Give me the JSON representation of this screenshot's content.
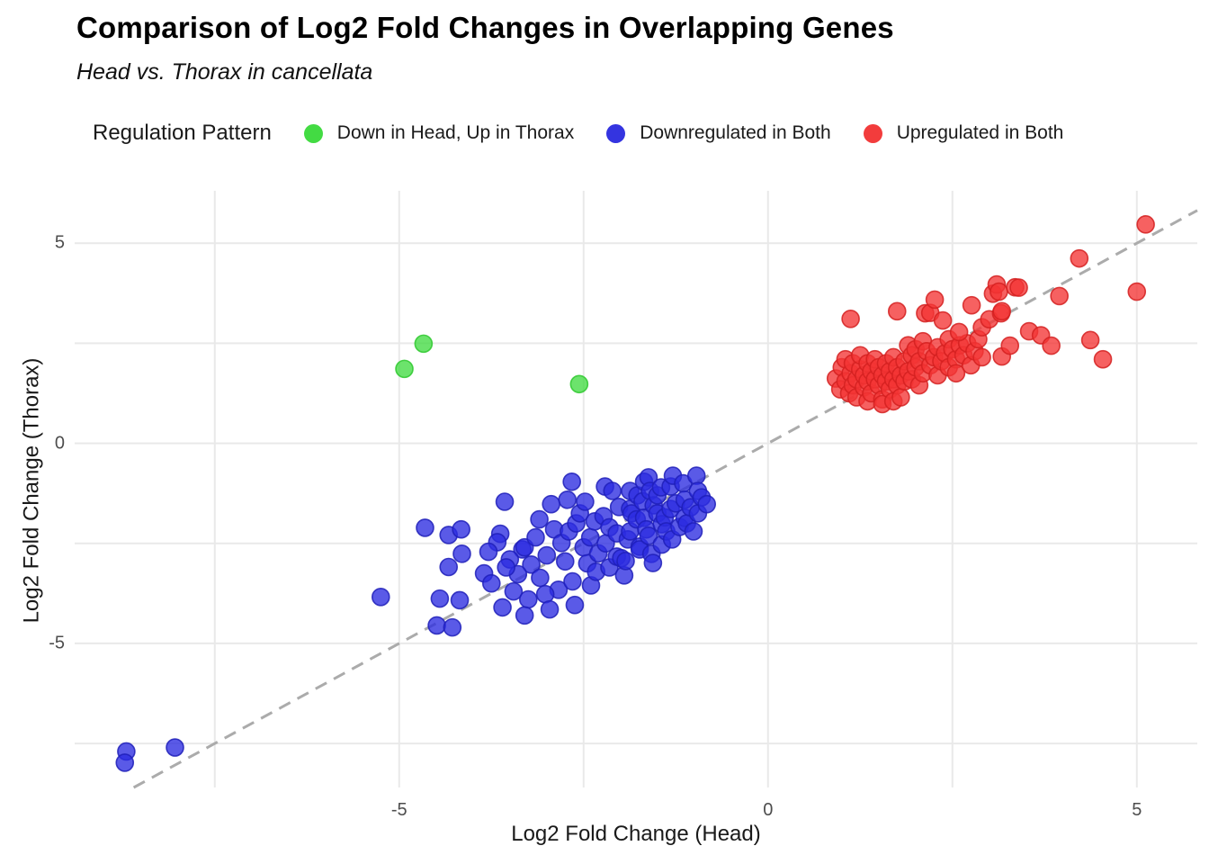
{
  "title": "Comparison of Log2 Fold Changes in Overlapping Genes",
  "subtitle": "Head vs. Thorax in cancellata",
  "legend": {
    "title": "Regulation Pattern",
    "position": "top",
    "items": [
      {
        "label": "Down in Head, Up in Thorax",
        "color": "#43DB43"
      },
      {
        "label": "Downregulated in Both",
        "color": "#3434E0"
      },
      {
        "label": "Upregulated in Both",
        "color": "#F23C3C"
      }
    ]
  },
  "axes": {
    "x": {
      "label": "Log2 Fold Change (Head)",
      "tick_labels": [
        "-5",
        "0",
        "5"
      ],
      "tick_values": [
        -5,
        0,
        5
      ]
    },
    "y": {
      "label": "Log2 Fold Change (Thorax)",
      "tick_labels": [
        "5",
        "0",
        "-5"
      ],
      "tick_values": [
        5,
        0,
        -5
      ]
    }
  },
  "chart_data": {
    "type": "scatter",
    "title": "Comparison of Log2 Fold Changes in Overlapping Genes",
    "subtitle": "Head vs. Thorax in cancellata",
    "xlabel": "Log2 Fold Change (Head)",
    "ylabel": "Log2 Fold Change (Thorax)",
    "xlim": [
      -9.4,
      5.82
    ],
    "ylim": [
      -8.6,
      6.31
    ],
    "grid": true,
    "grid_color": "#E9E9E9",
    "gridlines_x": [
      -7.5,
      -5,
      -2.5,
      0,
      2.5,
      5
    ],
    "gridlines_y": [
      5,
      2.5,
      0,
      -2.5,
      -5,
      -7.5
    ],
    "legend_position": "top",
    "point_radius_px": 9.5,
    "point_fill_opacity": 0.78,
    "identity_line": {
      "equation": "y = x",
      "style": "dashed",
      "color": "#ABABAB",
      "width": 3,
      "dash": "14 9"
    },
    "series": [
      {
        "name": "Down in Head, Up in Thorax",
        "color": "#43DB43",
        "stroke": "#2EC82E",
        "points": [
          [
            -4.93,
            1.86
          ],
          [
            -4.67,
            2.49
          ],
          [
            -2.56,
            1.48
          ]
        ]
      },
      {
        "name": "Downregulated in Both",
        "color": "#2B2BE0",
        "stroke": "#1F1FB8",
        "points": [
          [
            -8.7,
            -7.7
          ],
          [
            -8.72,
            -7.98
          ],
          [
            -8.04,
            -7.6
          ],
          [
            -5.25,
            -3.84
          ],
          [
            -4.65,
            -2.11
          ],
          [
            -4.33,
            -2.29
          ],
          [
            -4.16,
            -2.15
          ],
          [
            -4.15,
            -2.76
          ],
          [
            -4.33,
            -3.09
          ],
          [
            -4.45,
            -3.88
          ],
          [
            -4.18,
            -3.92
          ],
          [
            -4.49,
            -4.55
          ],
          [
            -4.28,
            -4.6
          ],
          [
            -3.57,
            -1.46
          ],
          [
            -3.63,
            -2.26
          ],
          [
            -3.67,
            -2.47
          ],
          [
            -3.79,
            -2.71
          ],
          [
            -3.85,
            -3.25
          ],
          [
            -3.33,
            -2.65
          ],
          [
            -3.21,
            -3.03
          ],
          [
            -3.39,
            -3.27
          ],
          [
            -3.3,
            -2.6
          ],
          [
            -3.0,
            -2.8
          ],
          [
            -3.09,
            -3.36
          ],
          [
            -2.84,
            -3.66
          ],
          [
            -3.02,
            -3.77
          ],
          [
            -2.96,
            -4.15
          ],
          [
            -2.62,
            -4.04
          ],
          [
            -3.5,
            -2.9
          ],
          [
            -3.55,
            -3.1
          ],
          [
            -3.75,
            -3.5
          ],
          [
            -3.45,
            -3.7
          ],
          [
            -3.25,
            -3.9
          ],
          [
            -3.6,
            -4.1
          ],
          [
            -3.3,
            -4.3
          ],
          [
            -3.1,
            -1.9
          ],
          [
            -3.15,
            -2.35
          ],
          [
            -2.9,
            -2.15
          ],
          [
            -2.8,
            -2.49
          ],
          [
            -2.75,
            -2.95
          ],
          [
            -2.7,
            -2.2
          ],
          [
            -2.66,
            -0.96
          ],
          [
            -2.72,
            -1.41
          ],
          [
            -2.94,
            -1.52
          ],
          [
            -2.6,
            -2.0
          ],
          [
            -2.55,
            -1.75
          ],
          [
            -2.5,
            -2.6
          ],
          [
            -2.48,
            -1.46
          ],
          [
            -2.45,
            -3.0
          ],
          [
            -2.41,
            -2.35
          ],
          [
            -2.4,
            -3.55
          ],
          [
            -2.35,
            -1.95
          ],
          [
            -2.33,
            -3.21
          ],
          [
            -2.3,
            -2.75
          ],
          [
            -2.23,
            -1.82
          ],
          [
            -2.21,
            -1.08
          ],
          [
            -2.2,
            -2.5
          ],
          [
            -2.15,
            -2.1
          ],
          [
            -2.15,
            -3.1
          ],
          [
            -2.11,
            -1.19
          ],
          [
            -2.05,
            -2.83
          ],
          [
            -2.05,
            -2.25
          ],
          [
            -2.02,
            -1.59
          ],
          [
            -1.95,
            -3.3
          ],
          [
            -1.9,
            -2.4
          ],
          [
            -2.65,
            -3.45
          ],
          [
            -1.99,
            -2.87
          ],
          [
            -1.93,
            -2.94
          ],
          [
            -1.87,
            -1.19
          ],
          [
            -1.87,
            -1.64
          ],
          [
            -1.87,
            -2.2
          ],
          [
            -1.85,
            -1.75
          ],
          [
            -1.78,
            -1.9
          ],
          [
            -1.77,
            -1.3
          ],
          [
            -1.74,
            -2.58
          ],
          [
            -1.74,
            -2.65
          ],
          [
            -1.7,
            -1.45
          ],
          [
            -1.68,
            -0.96
          ],
          [
            -1.68,
            -1.86
          ],
          [
            -1.65,
            -2.15
          ],
          [
            -1.62,
            -0.85
          ],
          [
            -1.62,
            -2.31
          ],
          [
            -1.6,
            -1.19
          ],
          [
            -1.58,
            -2.76
          ],
          [
            -1.56,
            -2.99
          ],
          [
            -1.55,
            -1.55
          ],
          [
            -1.5,
            -1.3
          ],
          [
            -1.5,
            -1.75
          ],
          [
            -1.45,
            -1.1
          ],
          [
            -1.44,
            -2.02
          ],
          [
            -1.44,
            -2.53
          ],
          [
            -1.4,
            -1.85
          ],
          [
            -1.38,
            -2.2
          ],
          [
            -1.32,
            -1.08
          ],
          [
            -1.32,
            -1.64
          ],
          [
            -1.3,
            -2.4
          ],
          [
            -1.29,
            -0.81
          ],
          [
            -1.25,
            -1.5
          ],
          [
            -1.2,
            -2.09
          ],
          [
            -1.15,
            -1.0
          ],
          [
            -1.13,
            -1.41
          ],
          [
            -1.13,
            -1.86
          ],
          [
            -1.1,
            -2.0
          ],
          [
            -1.05,
            -1.6
          ],
          [
            -1.01,
            -2.2
          ],
          [
            -0.97,
            -0.81
          ],
          [
            -0.95,
            -1.19
          ],
          [
            -0.95,
            -1.75
          ],
          [
            -0.9,
            -1.35
          ],
          [
            -0.83,
            -1.52
          ]
        ]
      },
      {
        "name": "Upregulated in Both",
        "color": "#F43434",
        "stroke": "#D42020",
        "points": [
          [
            0.92,
            1.62
          ],
          [
            0.98,
            1.35
          ],
          [
            1.0,
            1.9
          ],
          [
            1.05,
            1.55
          ],
          [
            1.05,
            2.1
          ],
          [
            1.1,
            1.25
          ],
          [
            1.12,
            1.75
          ],
          [
            1.15,
            1.45
          ],
          [
            1.15,
            2.0
          ],
          [
            1.2,
            1.6
          ],
          [
            1.2,
            1.15
          ],
          [
            1.25,
            1.85
          ],
          [
            1.25,
            2.2
          ],
          [
            1.3,
            1.4
          ],
          [
            1.3,
            1.7
          ],
          [
            1.35,
            1.55
          ],
          [
            1.35,
            2.0
          ],
          [
            1.35,
            1.05
          ],
          [
            1.4,
            1.25
          ],
          [
            1.4,
            1.8
          ],
          [
            1.45,
            1.6
          ],
          [
            1.45,
            2.1
          ],
          [
            1.5,
            1.45
          ],
          [
            1.5,
            1.9
          ],
          [
            1.55,
            1.7
          ],
          [
            1.55,
            1.1
          ],
          [
            1.55,
            0.98
          ],
          [
            1.6,
            1.55
          ],
          [
            1.6,
            2.0
          ],
          [
            1.65,
            1.35
          ],
          [
            1.65,
            1.8
          ],
          [
            1.7,
            1.6
          ],
          [
            1.7,
            2.15
          ],
          [
            1.7,
            1.05
          ],
          [
            1.75,
            1.45
          ],
          [
            1.75,
            1.9
          ],
          [
            1.8,
            1.7
          ],
          [
            1.8,
            1.15
          ],
          [
            1.85,
            1.55
          ],
          [
            1.85,
            2.05
          ],
          [
            1.9,
            1.8
          ],
          [
            1.9,
            2.45
          ],
          [
            1.95,
            1.6
          ],
          [
            1.95,
            2.2
          ],
          [
            2.0,
            1.9
          ],
          [
            2.0,
            2.35
          ],
          [
            2.05,
            1.45
          ],
          [
            2.05,
            2.05
          ],
          [
            2.1,
            1.75
          ],
          [
            2.1,
            2.55
          ],
          [
            2.15,
            2.3
          ],
          [
            2.2,
            1.95
          ],
          [
            2.25,
            2.15
          ],
          [
            2.3,
            2.4
          ],
          [
            2.3,
            1.7
          ],
          [
            2.35,
            2.05
          ],
          [
            2.4,
            2.25
          ],
          [
            2.45,
            1.9
          ],
          [
            2.45,
            2.6
          ],
          [
            2.5,
            2.35
          ],
          [
            2.55,
            2.1
          ],
          [
            2.55,
            1.75
          ],
          [
            2.6,
            2.45
          ],
          [
            2.65,
            2.2
          ],
          [
            2.7,
            2.5
          ],
          [
            2.75,
            1.95
          ],
          [
            2.8,
            2.3
          ],
          [
            2.85,
            2.6
          ],
          [
            2.9,
            2.15
          ],
          [
            2.9,
            2.9
          ],
          [
            3.0,
            3.1
          ],
          [
            1.12,
            3.11
          ],
          [
            1.75,
            3.3
          ],
          [
            2.13,
            3.25
          ],
          [
            2.2,
            3.26
          ],
          [
            2.26,
            3.59
          ],
          [
            2.37,
            3.07
          ],
          [
            2.59,
            2.78
          ],
          [
            2.76,
            3.45
          ],
          [
            3.05,
            3.74
          ],
          [
            3.1,
            3.97
          ],
          [
            3.13,
            3.79
          ],
          [
            3.16,
            3.25
          ],
          [
            3.17,
            3.3
          ],
          [
            3.17,
            2.17
          ],
          [
            3.28,
            2.44
          ],
          [
            3.35,
            3.9
          ],
          [
            3.4,
            3.89
          ],
          [
            3.54,
            2.8
          ],
          [
            3.7,
            2.7
          ],
          [
            3.84,
            2.44
          ],
          [
            3.95,
            3.68
          ],
          [
            4.22,
            4.62
          ],
          [
            4.37,
            2.58
          ],
          [
            4.54,
            2.1
          ],
          [
            5.0,
            3.79
          ],
          [
            5.12,
            5.47
          ]
        ]
      }
    ]
  }
}
